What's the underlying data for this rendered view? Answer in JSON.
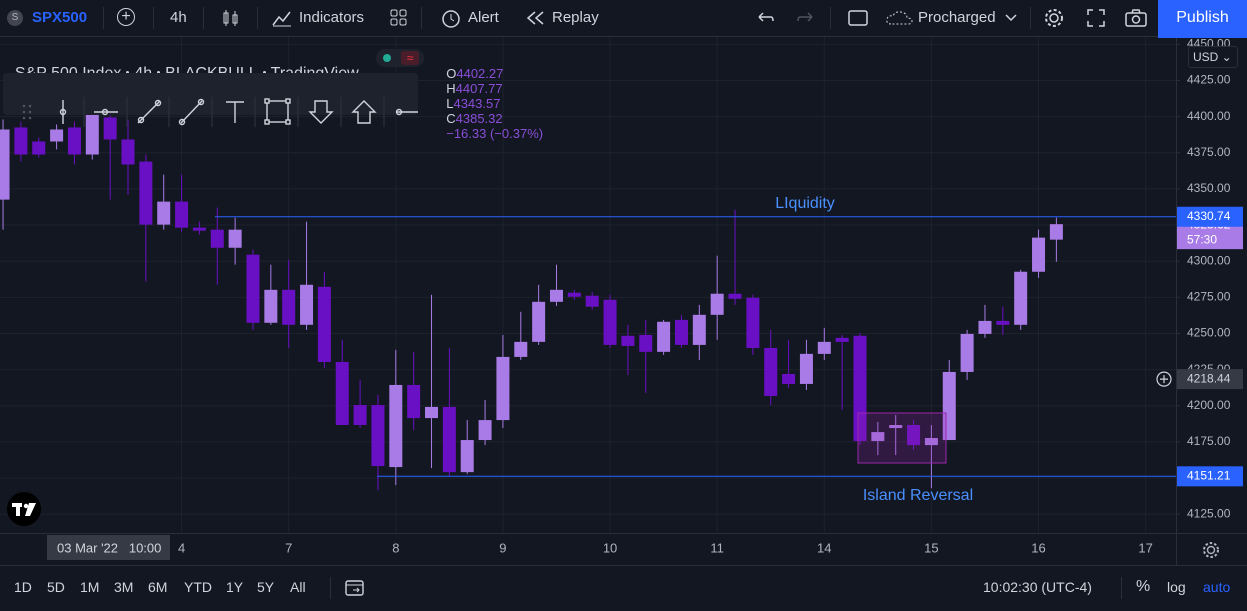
{
  "toolbar": {
    "symbol_badge": "S",
    "symbol": "SPX500",
    "interval": "4h",
    "indicators": "Indicators",
    "alert": "Alert",
    "replay": "Replay",
    "layout_name": "Procharged",
    "publish": "Publish"
  },
  "legend": {
    "name": "S&P 500 Index",
    "interval": "4h",
    "exchange": "BLACKBULL",
    "source": "TradingView",
    "open_label": "O",
    "open": 4402.27,
    "high_label": "H",
    "high": 4407.77,
    "low_label": "L",
    "low": 4343.57,
    "close_label": "C",
    "close": 4385.32,
    "change": "−16.33 (−0.37%)"
  },
  "chart_data": {
    "type": "candlestick",
    "open": [
      4342.6,
      4392.5,
      4382.8,
      4382.8,
      4392.5,
      4373.8,
      4399.4,
      4384.2,
      4368.9,
      4325.3,
      4341.2,
      4323.2,
      4321.8,
      4309.3,
      4304.5,
      4257.4,
      4280.2,
      4256.0,
      4282.3,
      4230.3,
      4200.5,
      4200.5,
      4157.6,
      4214.4,
      4191.5,
      4199.2,
      4154.1,
      4176.3,
      4190.1,
      4233.8,
      4244.2,
      4271.9,
      4278.2,
      4276.1,
      4273.3,
      4248.4,
      4249.0,
      4237.3,
      4259.4,
      4242.1,
      4262.9,
      4277.5,
      4274.7,
      4240.0,
      4222.0,
      4215.1,
      4235.9,
      4247.0,
      4248.4,
      4175.6,
      4184.6,
      4186.7,
      4172.8,
      4176.3,
      4223.4,
      4249.7,
      4258.7,
      4256.0,
      4292.7,
      4314.9
    ],
    "high": [
      4398.0,
      4396.6,
      4385.6,
      4394.6,
      4396.6,
      4411.9,
      4403.6,
      4398.0,
      4373.8,
      4359.9,
      4359.9,
      4327.4,
      4337.1,
      4330.1,
      4308.0,
      4297.6,
      4301.0,
      4327.4,
      4292.7,
      4245.6,
      4217.9,
      4207.5,
      4238.7,
      4237.3,
      4276.8,
      4240.0,
      4190.1,
      4204.0,
      4249.0,
      4265.0,
      4283.7,
      4297.6,
      4280.2,
      4278.8,
      4276.8,
      4256.0,
      4259.4,
      4259.4,
      4262.9,
      4269.8,
      4303.8,
      4335.7,
      4276.8,
      4252.5,
      4245.6,
      4245.6,
      4253.9,
      4249.0,
      4250.4,
      4188.8,
      4193.6,
      4190.1,
      4186.7,
      4231.7,
      4252.5,
      4269.8,
      4268.5,
      4294.1,
      4321.8,
      4330.1
    ],
    "low": [
      4321.8,
      4369.0,
      4371.7,
      4377.3,
      4366.9,
      4370.3,
      4342.6,
      4346.1,
      4285.8,
      4321.8,
      4320.4,
      4318.3,
      4283.7,
      4297.6,
      4252.5,
      4256.0,
      4240.0,
      4252.5,
      4226.2,
      4186.7,
      4184.6,
      4141.6,
      4145.1,
      4183.2,
      4156.9,
      4151.3,
      4152.7,
      4172.8,
      4184.6,
      4231.7,
      4242.1,
      4269.1,
      4273.3,
      4266.4,
      4240.0,
      4221.3,
      4208.9,
      4235.2,
      4240.0,
      4231.7,
      4245.6,
      4269.8,
      4235.2,
      4200.5,
      4212.3,
      4210.9,
      4231.7,
      4197.1,
      4172.8,
      4165.9,
      4165.9,
      4169.4,
      4143.0,
      4176.3,
      4217.9,
      4247.0,
      4249.0,
      4252.5,
      4288.5,
      4299.6
    ],
    "close": [
      4391.1,
      4373.8,
      4373.8,
      4391.1,
      4373.8,
      4401.5,
      4384.2,
      4366.9,
      4325.3,
      4341.2,
      4323.2,
      4321.1,
      4309.3,
      4321.8,
      4257.4,
      4280.2,
      4256.0,
      4283.7,
      4230.3,
      4186.7,
      4186.7,
      4158.3,
      4214.4,
      4191.5,
      4199.2,
      4154.1,
      4176.3,
      4190.1,
      4233.8,
      4244.2,
      4271.9,
      4280.2,
      4275.4,
      4268.5,
      4242.1,
      4241.4,
      4237.3,
      4258.1,
      4242.1,
      4262.9,
      4277.5,
      4274.0,
      4240.0,
      4206.8,
      4215.1,
      4235.9,
      4244.2,
      4244.2,
      4175.6,
      4181.8,
      4186.7,
      4172.8,
      4177.7,
      4223.4,
      4249.7,
      4258.7,
      4256.0,
      4292.7,
      4316.3,
      4325.62
    ],
    "up_color": "#a97be6",
    "down_color": "#6a10c4",
    "xlim": [
      -0.17,
      65.7
    ],
    "xticks": [
      {
        "value": 10,
        "label": "4"
      },
      {
        "value": 16,
        "label": "7"
      },
      {
        "value": 22,
        "label": "8"
      },
      {
        "value": 28,
        "label": "9"
      },
      {
        "value": 34,
        "label": "10"
      },
      {
        "value": 40,
        "label": "11"
      },
      {
        "value": 46,
        "label": "14"
      },
      {
        "value": 52,
        "label": "15"
      },
      {
        "value": 58,
        "label": "16"
      },
      {
        "value": 64,
        "label": "17"
      }
    ],
    "ylim": [
      4112,
      4453
    ],
    "yticks": [
      {
        "value": 4125,
        "label": "4125.00"
      },
      {
        "value": 4150,
        "label": "4150.00"
      },
      {
        "value": 4175,
        "label": "4175.00"
      },
      {
        "value": 4200,
        "label": "4200.00"
      },
      {
        "value": 4225,
        "label": "4225.00"
      },
      {
        "value": 4250,
        "label": "4250.00"
      },
      {
        "value": 4275,
        "label": "4275.00"
      },
      {
        "value": 4300,
        "label": "4300.00"
      },
      {
        "value": 4325,
        "label": "4325.00"
      },
      {
        "value": 4350,
        "label": "4350.00"
      },
      {
        "value": 4375,
        "label": "4375.00"
      },
      {
        "value": 4400,
        "label": "4400.00"
      },
      {
        "value": 4425,
        "label": "4425.00"
      },
      {
        "value": 4450,
        "label": "4450.00"
      }
    ],
    "grid": true,
    "line_color": "#2962ff",
    "hlines": [
      {
        "value": 4330.74,
        "label": "LIquidity"
      },
      {
        "value": 4151.21,
        "label": "Island Reversal"
      }
    ],
    "countdown": "57:30",
    "crosshair": {
      "price": 4218.44,
      "time": "03 Mar '22   10:00"
    }
  },
  "price_axis": {
    "currency": "USD"
  },
  "bottom_bar": {
    "ranges": [
      "1D",
      "5D",
      "1M",
      "3M",
      "6M",
      "YTD",
      "1Y",
      "5Y",
      "All"
    ],
    "clock": "10:02:30 (UTC-4)",
    "percent": "%",
    "log": "log",
    "auto": "auto"
  }
}
